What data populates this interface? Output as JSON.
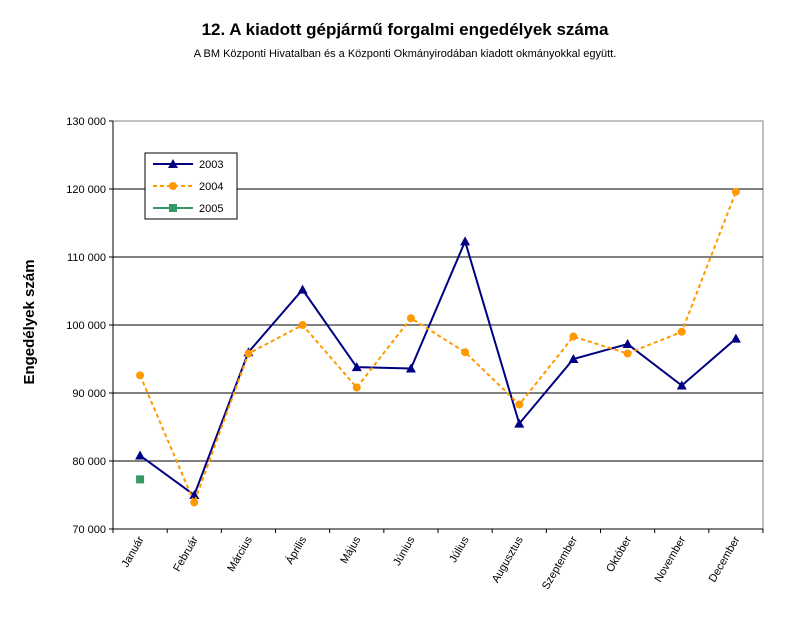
{
  "chart_data": {
    "type": "line",
    "title": "12. A  kiadott gépjármű forgalmi engedélyek száma",
    "subtitle": "A BM Központi Hivatalban és a Központi Okmányirodában kiadott okmányokkal együtt.",
    "ylabel": "Engedélyek szám",
    "xlabel": "",
    "ylim": [
      70000,
      130000
    ],
    "yticks": [
      70000,
      80000,
      90000,
      100000,
      110000,
      120000,
      130000
    ],
    "ytick_labels": [
      "70 000",
      "80 000",
      "90 000",
      "100 000",
      "110 000",
      "120 000",
      "130 000"
    ],
    "grid": true,
    "legend_position": "top-left",
    "categories": [
      "Január",
      "Február",
      "Március",
      "Április",
      "Május",
      "Június",
      "Július",
      "Augusztus",
      "Szeptember",
      "Október",
      "November",
      "December"
    ],
    "series": [
      {
        "name": "2003",
        "color": "#000080",
        "line_style": "solid",
        "marker": "triangle",
        "values": [
          80800,
          75000,
          96000,
          105200,
          93800,
          93600,
          112300,
          85500,
          95000,
          97200,
          91100,
          98000
        ]
      },
      {
        "name": "2004",
        "color": "#FF9900",
        "line_style": "dashed",
        "marker": "circle",
        "values": [
          92600,
          73900,
          95800,
          100000,
          90800,
          101000,
          96000,
          88300,
          98300,
          95800,
          99000,
          119600
        ]
      },
      {
        "name": "2005",
        "color": "#339966",
        "line_style": "solid",
        "marker": "square",
        "values": [
          77300,
          null,
          null,
          null,
          null,
          null,
          null,
          null,
          null,
          null,
          null,
          null
        ]
      }
    ]
  }
}
